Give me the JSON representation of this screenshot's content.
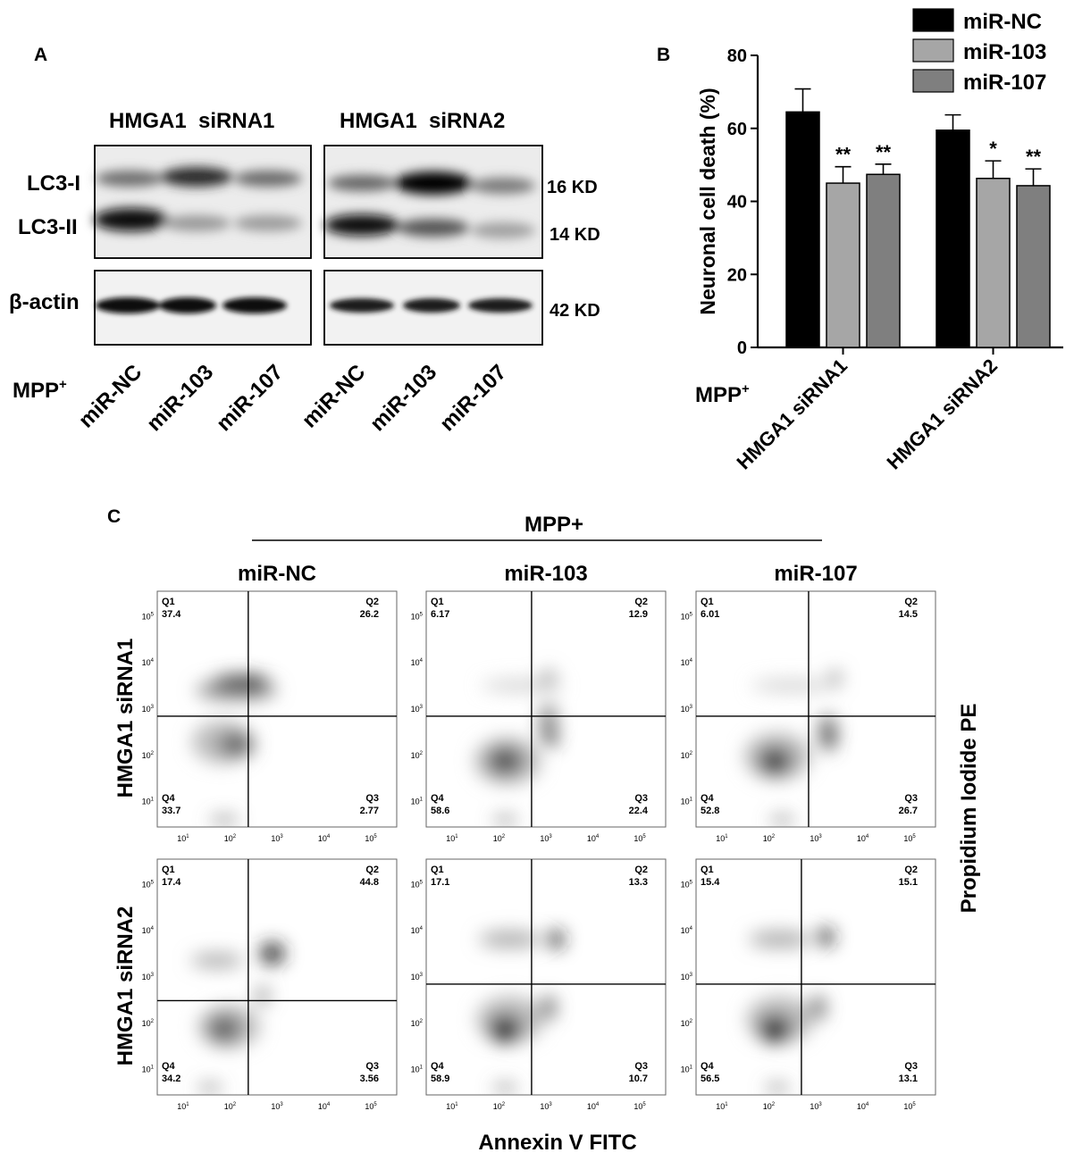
{
  "panel_a": {
    "letter": "A",
    "group_left": "HMGA1  siRNA1",
    "group_right": "HMGA1  siRNA2",
    "row_labels": {
      "lc3_i": "LC3-I",
      "lc3_ii": "LC3-II",
      "actin": "β-actin"
    },
    "sizes": {
      "lc3_i": "16 KD",
      "lc3_ii": "14 KD",
      "actin": "42 KD"
    },
    "mpp_label": "MPP",
    "mpp_sup": "+",
    "lanes": [
      "miR-NC",
      "miR-103",
      "miR-107",
      "miR-NC",
      "miR-103",
      "miR-107"
    ]
  },
  "panel_b": {
    "letter": "B",
    "mpp_label": "MPP",
    "mpp_sup": "+"
  },
  "chart_data": {
    "type": "bar",
    "ylabel": "Neuronal cell death (%)",
    "ylim": [
      0,
      80
    ],
    "yticks": [
      0,
      20,
      40,
      60,
      80
    ],
    "categories": [
      "HMGA1 siRNA1",
      "HMGA1 siRNA2"
    ],
    "series": [
      {
        "name": "miR-NC",
        "values": [
          64.5,
          59.5
        ],
        "errors": [
          6.3,
          4.2
        ],
        "sig": [
          "",
          ""
        ],
        "color": "#000000"
      },
      {
        "name": "miR-103",
        "values": [
          45,
          46.3
        ],
        "errors": [
          4.5,
          4.8
        ],
        "sig": [
          "**",
          "*"
        ],
        "color": "#a6a6a6"
      },
      {
        "name": "miR-107",
        "values": [
          47.4,
          44.3
        ],
        "errors": [
          2.8,
          4.6
        ],
        "sig": [
          "**",
          "**"
        ],
        "color": "#7f7f7f"
      }
    ],
    "legend_position": "top-right"
  },
  "panel_c": {
    "letter": "C",
    "header": "MPP+",
    "columns": [
      "miR-NC",
      "miR-103",
      "miR-107"
    ],
    "row_labels": [
      "HMGA1  siRNA1",
      "HMGA1  siRNA2"
    ],
    "xlabel": "Annexin V FITC",
    "ylabel": "Propidium Iodide PE",
    "tick_base": "10",
    "tick_exps": [
      "1",
      "2",
      "3",
      "4",
      "5"
    ],
    "quadrant_names": [
      "Q1",
      "Q2",
      "Q3",
      "Q4"
    ],
    "plots": [
      {
        "q1": "37.4",
        "q2": "26.2",
        "q3": "2.77",
        "q4": "33.7"
      },
      {
        "q1": "6.17",
        "q2": "12.9",
        "q3": "22.4",
        "q4": "58.6"
      },
      {
        "q1": "6.01",
        "q2": "14.5",
        "q3": "26.7",
        "q4": "52.8"
      },
      {
        "q1": "17.4",
        "q2": "44.8",
        "q3": "3.56",
        "q4": "34.2"
      },
      {
        "q1": "17.1",
        "q2": "13.3",
        "q3": "10.7",
        "q4": "58.9"
      },
      {
        "q1": "15.4",
        "q2": "15.1",
        "q3": "13.1",
        "q4": "56.5"
      }
    ]
  }
}
